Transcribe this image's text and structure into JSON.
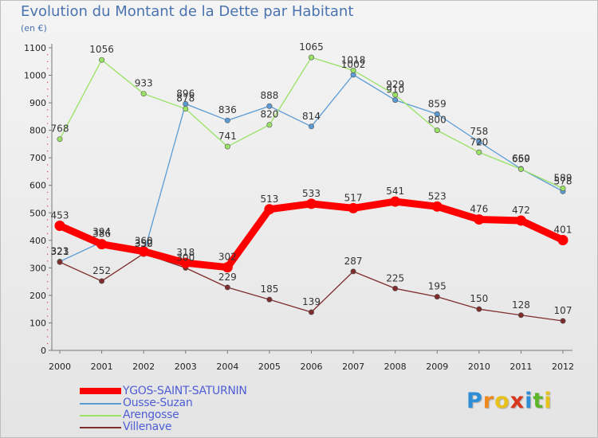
{
  "chart_data": {
    "type": "line",
    "title": "Evolution du Montant de la Dette par Habitant",
    "subtitle": "(en €)",
    "xlabel": "",
    "ylabel": "",
    "ylim": [
      0,
      1100
    ],
    "yticks": [
      "0",
      "100",
      "200",
      "300",
      "400",
      "500",
      "600",
      "700",
      "800",
      "900",
      "1000",
      "1100"
    ],
    "categories": [
      "2000",
      "2001",
      "2002",
      "2003",
      "2004",
      "2005",
      "2006",
      "2007",
      "2008",
      "2009",
      "2010",
      "2011",
      "2012"
    ],
    "grid": false,
    "legend_position": "bottom-left",
    "series": [
      {
        "name": "YGOS-SAINT-SATURNIN",
        "color": "#ff0000",
        "values": [
          453,
          386,
          360,
          318,
          302,
          513,
          533,
          517,
          541,
          523,
          476,
          472,
          401
        ]
      },
      {
        "name": "Ousse-Suzan",
        "color": "#5b9bd5",
        "values": [
          323,
          394,
          350,
          896,
          836,
          888,
          814,
          1002,
          910,
          859,
          758,
          660,
          578
        ]
      },
      {
        "name": "Arengosse",
        "color": "#99e265",
        "values": [
          768,
          1056,
          933,
          878,
          741,
          820,
          1065,
          1018,
          929,
          800,
          720,
          659,
          589
        ]
      },
      {
        "name": "Villenave",
        "color": "#7f2c2c",
        "values": [
          321,
          252,
          352,
          300,
          229,
          185,
          139,
          287,
          225,
          195,
          150,
          128,
          107
        ]
      }
    ]
  },
  "brand": {
    "letters": [
      "P",
      "r",
      "o",
      "x",
      "i",
      "t",
      "i"
    ],
    "colors": [
      "#2e8fd6",
      "#f08a1c",
      "#e8c21a",
      "#d9361e",
      "#2e8fd6",
      "#5fb52a",
      "#e8c21a"
    ]
  }
}
